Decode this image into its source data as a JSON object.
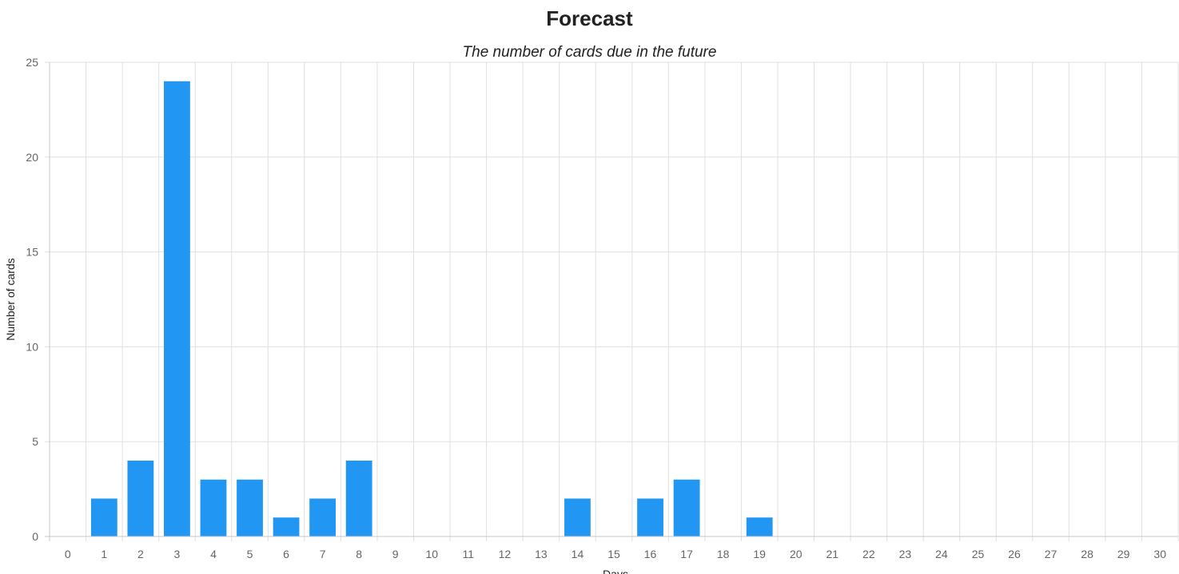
{
  "page": {
    "title": "Forecast",
    "subtitle": "The number of cards due in the future"
  },
  "chart_data": {
    "type": "bar",
    "title": "Forecast",
    "subtitle": "The number of cards due in the future",
    "xlabel": "Days",
    "ylabel": "Number of cards",
    "categories": [
      "0",
      "1",
      "2",
      "3",
      "4",
      "5",
      "6",
      "7",
      "8",
      "9",
      "10",
      "11",
      "12",
      "13",
      "14",
      "15",
      "16",
      "17",
      "18",
      "19",
      "20",
      "21",
      "22",
      "23",
      "24",
      "25",
      "26",
      "27",
      "28",
      "29",
      "30"
    ],
    "values": [
      0,
      2,
      4,
      24,
      3,
      3,
      1,
      2,
      4,
      0,
      0,
      0,
      0,
      0,
      2,
      0,
      2,
      3,
      0,
      1,
      0,
      0,
      0,
      0,
      0,
      0,
      0,
      0,
      0,
      0,
      0
    ],
    "ylim": [
      0,
      25
    ],
    "yticks": [
      0,
      5,
      10,
      15,
      20,
      25
    ],
    "grid": true,
    "legend": "none",
    "colors": {
      "bar": "#2196f3",
      "grid": "#e0e0e0",
      "axis": "#c8c8c8",
      "tick_text": "#666666",
      "title_text": "#222222"
    }
  }
}
